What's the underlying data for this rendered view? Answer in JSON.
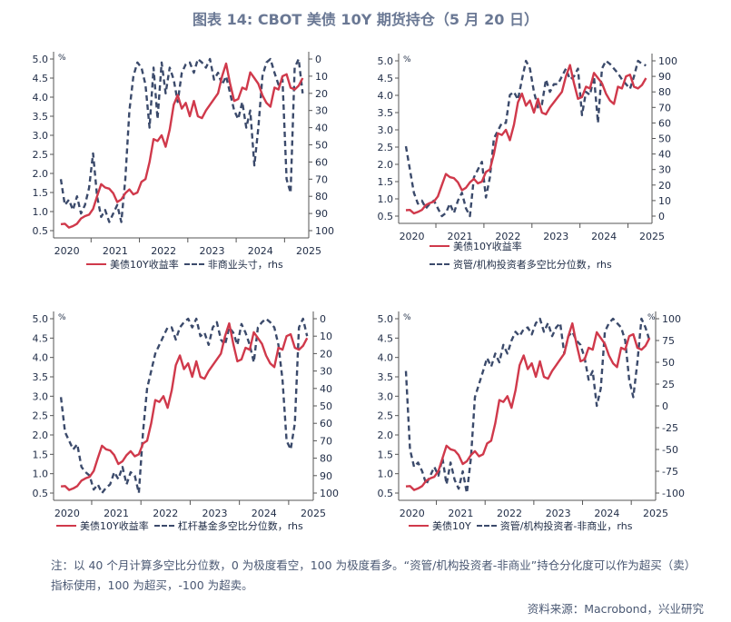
{
  "title": "图表 14: CBOT 美债 10Y 期货持仓（5 月 20 日）",
  "note": "注：以 40 个月计算多空比分位数，0 为极度看空，100 为极度看多。“资管/机构投资者-非商业”持仓分化度可以作为超买（卖）指标使用，100 为超买，-100 为超卖。",
  "source": "资料来源：Macrobond，兴业研究",
  "colors": {
    "yield": "#d0394b",
    "position": "#3b4a6b",
    "text": "#1e2b45"
  },
  "chart_data": [
    {
      "type": "line",
      "unit_label": "%",
      "x_tick_labels": [
        "2020",
        "2021",
        "2022",
        "2023",
        "2024",
        "2025"
      ],
      "ylim": [
        0.5,
        5.0
      ],
      "y_ticks": [
        0.5,
        1.0,
        1.5,
        2.0,
        2.5,
        3.0,
        3.5,
        4.0,
        4.5,
        5.0
      ],
      "y2lim": [
        0,
        100
      ],
      "y2_inverted": true,
      "y2_ticks": [
        0,
        10,
        20,
        30,
        40,
        50,
        60,
        70,
        80,
        90,
        100
      ],
      "legend": [
        "美债10Y收益率",
        "非商业头寸，rhs"
      ],
      "series": [
        {
          "name": "美债10Y收益率",
          "axis": "left",
          "style": "solid",
          "values_ref": "yield"
        },
        {
          "name": "非商业头寸，rhs",
          "axis": "right",
          "style": "dashed",
          "values": [
            70,
            85,
            82,
            88,
            80,
            90,
            85,
            75,
            55,
            80,
            92,
            88,
            95,
            90,
            85,
            95,
            70,
            30,
            10,
            2,
            5,
            15,
            40,
            5,
            35,
            2,
            20,
            5,
            12,
            25,
            8,
            3,
            2,
            8,
            0,
            2,
            5,
            0,
            12,
            8,
            15,
            10,
            20,
            30,
            35,
            25,
            40,
            30,
            62,
            40,
            10,
            2,
            0,
            8,
            15,
            12,
            70,
            78,
            5,
            0,
            20
          ]
        }
      ]
    },
    {
      "type": "line",
      "unit_label": "%",
      "x_tick_labels": [
        "2020",
        "2021",
        "2022",
        "2023",
        "2024",
        "2025"
      ],
      "ylim": [
        0.5,
        5.0
      ],
      "y_ticks": [
        0.5,
        1.0,
        1.5,
        2.0,
        2.5,
        3.0,
        3.5,
        4.0,
        4.5,
        5.0
      ],
      "y2lim": [
        0,
        100
      ],
      "y2_inverted": false,
      "y2_ticks": [
        0,
        10,
        20,
        30,
        40,
        50,
        60,
        70,
        80,
        90,
        100
      ],
      "legend": [
        "美债10Y收益率",
        "资管/机构投资者多空比分位数，rhs"
      ],
      "series": [
        {
          "name": "美债10Y收益率",
          "axis": "left",
          "style": "solid",
          "values_ref": "yield"
        },
        {
          "name": "资管/机构投资者多空比分位数，rhs",
          "axis": "right",
          "style": "dashed",
          "values": [
            45,
            30,
            15,
            8,
            10,
            5,
            8,
            10,
            5,
            0,
            2,
            8,
            2,
            10,
            15,
            5,
            0,
            25,
            30,
            35,
            12,
            25,
            50,
            55,
            60,
            60,
            78,
            80,
            75,
            88,
            100,
            95,
            80,
            70,
            72,
            88,
            80,
            85,
            85,
            90,
            95,
            88,
            90,
            95,
            65,
            80,
            78,
            90,
            60,
            95,
            100,
            98,
            95,
            92,
            88,
            85,
            82,
            90,
            100,
            98,
            97
          ]
        }
      ]
    },
    {
      "type": "line",
      "unit_label": "%",
      "x_tick_labels": [
        "2020",
        "2021",
        "2022",
        "2023",
        "2024",
        "2025"
      ],
      "ylim": [
        0.5,
        5.0
      ],
      "y_ticks": [
        0.5,
        1.0,
        1.5,
        2.0,
        2.5,
        3.0,
        3.5,
        4.0,
        4.5,
        5.0
      ],
      "y2lim": [
        0,
        100
      ],
      "y2_inverted": true,
      "y2_ticks": [
        0,
        10,
        20,
        30,
        40,
        50,
        60,
        70,
        80,
        90,
        100
      ],
      "legend": [
        "美债10Y收益率",
        "杠杆基金多空比分位数，rhs"
      ],
      "series": [
        {
          "name": "美债10Y收益率",
          "axis": "left",
          "style": "solid",
          "values_ref": "yield"
        },
        {
          "name": "杠杆基金多空比分位数，rhs",
          "axis": "right",
          "style": "dashed",
          "values": [
            45,
            65,
            70,
            75,
            72,
            85,
            88,
            90,
            98,
            95,
            100,
            97,
            95,
            88,
            92,
            85,
            95,
            88,
            90,
            100,
            65,
            40,
            30,
            20,
            15,
            10,
            5,
            5,
            12,
            5,
            2,
            0,
            5,
            0,
            10,
            8,
            15,
            5,
            2,
            12,
            15,
            5,
            8,
            15,
            3,
            8,
            15,
            25,
            5,
            2,
            0,
            2,
            5,
            15,
            35,
            70,
            75,
            60,
            5,
            0,
            10
          ]
        }
      ]
    },
    {
      "type": "line",
      "unit_label": "%",
      "unit_label_right": "%",
      "x_tick_labels": [
        "2020",
        "2021",
        "2022",
        "2023",
        "2024",
        "2025"
      ],
      "ylim": [
        0.5,
        5.0
      ],
      "y_ticks": [
        0.5,
        1.0,
        1.5,
        2.0,
        2.5,
        3.0,
        3.5,
        4.0,
        4.5,
        5.0
      ],
      "y2lim": [
        -100,
        100
      ],
      "y2_inverted": false,
      "y2_ticks": [
        -100,
        -75,
        -50,
        -25,
        0,
        25,
        50,
        75,
        100
      ],
      "legend": [
        "美债10Y",
        "资管/机构投资者-非商业，rhs"
      ],
      "series": [
        {
          "name": "美债10Y",
          "axis": "left",
          "style": "solid",
          "values_ref": "yield"
        },
        {
          "name": "资管/机构投资者-非商业，rhs",
          "axis": "right",
          "style": "dashed",
          "values": [
            40,
            -50,
            -70,
            -65,
            -75,
            -90,
            -80,
            -70,
            -80,
            -60,
            -90,
            -65,
            -85,
            -95,
            -75,
            -100,
            -60,
            10,
            25,
            40,
            55,
            45,
            60,
            50,
            70,
            60,
            75,
            85,
            80,
            88,
            90,
            82,
            95,
            100,
            85,
            95,
            80,
            90,
            95,
            60,
            80,
            85,
            75,
            70,
            55,
            30,
            40,
            0,
            20,
            85,
            95,
            100,
            95,
            90,
            75,
            30,
            10,
            50,
            100,
            90,
            75
          ]
        }
      ]
    }
  ],
  "dates": [
    "2020-05",
    "2020-06",
    "2020-07",
    "2020-08",
    "2020-09",
    "2020-10",
    "2020-11",
    "2020-12",
    "2021-01",
    "2021-02",
    "2021-03",
    "2021-04",
    "2021-05",
    "2021-06",
    "2021-07",
    "2021-08",
    "2021-09",
    "2021-10",
    "2021-11",
    "2021-12",
    "2022-01",
    "2022-02",
    "2022-03",
    "2022-04",
    "2022-05",
    "2022-06",
    "2022-07",
    "2022-08",
    "2022-09",
    "2022-10",
    "2022-11",
    "2022-12",
    "2023-01",
    "2023-02",
    "2023-03",
    "2023-04",
    "2023-05",
    "2023-06",
    "2023-07",
    "2023-08",
    "2023-09",
    "2023-10",
    "2023-11",
    "2023-12",
    "2024-01",
    "2024-02",
    "2024-03",
    "2024-04",
    "2024-05",
    "2024-06",
    "2024-07",
    "2024-08",
    "2024-09",
    "2024-10",
    "2024-11",
    "2024-12",
    "2025-01",
    "2025-02",
    "2025-03",
    "2025-04",
    "2025-05"
  ],
  "yield": [
    0.67,
    0.68,
    0.58,
    0.62,
    0.68,
    0.82,
    0.88,
    0.92,
    1.07,
    1.4,
    1.72,
    1.63,
    1.6,
    1.48,
    1.25,
    1.32,
    1.48,
    1.58,
    1.45,
    1.5,
    1.78,
    1.85,
    2.3,
    2.9,
    2.85,
    3.0,
    2.7,
    3.15,
    3.8,
    4.05,
    3.7,
    3.85,
    3.5,
    3.9,
    3.5,
    3.45,
    3.65,
    3.8,
    3.95,
    4.1,
    4.55,
    4.88,
    4.35,
    3.9,
    3.95,
    4.25,
    4.2,
    4.65,
    4.5,
    4.35,
    4.05,
    3.85,
    3.75,
    4.25,
    4.2,
    4.55,
    4.6,
    4.25,
    4.2,
    4.3,
    4.5
  ]
}
